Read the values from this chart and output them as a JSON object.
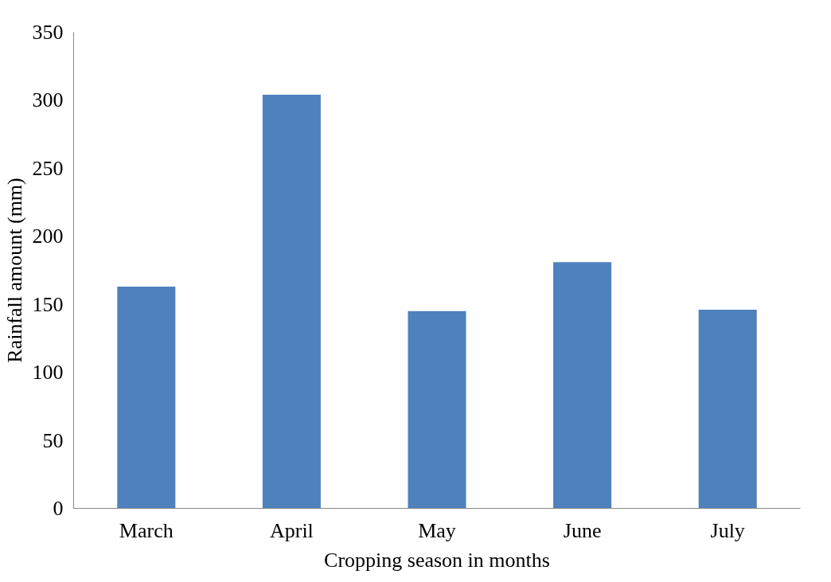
{
  "chart_data": {
    "type": "bar",
    "xlabel": "Cropping season in months",
    "ylabel": "Rainfall amount (mm)",
    "categories": [
      "March",
      "April",
      "May",
      "June",
      "July"
    ],
    "values": [
      163,
      304,
      145,
      181,
      146
    ],
    "color": "#4f81bd",
    "ylim": [
      0,
      350
    ],
    "yticks": [
      0,
      50,
      100,
      150,
      200,
      250,
      300,
      350
    ],
    "grid": false
  }
}
